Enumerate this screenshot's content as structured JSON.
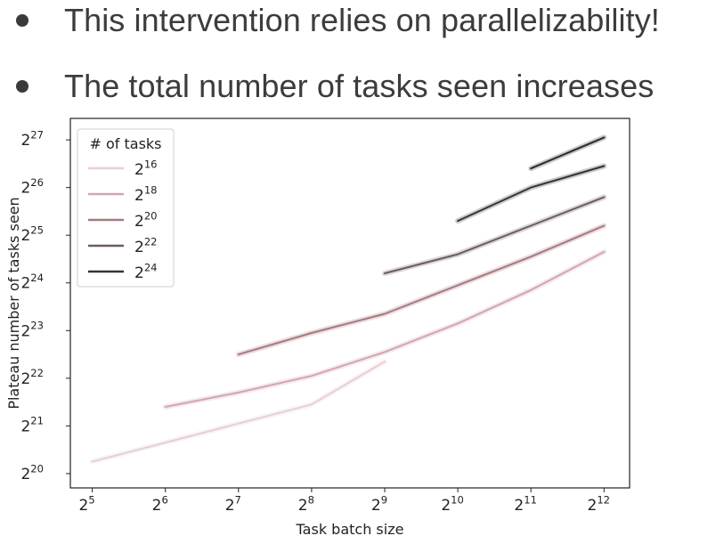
{
  "slide": {
    "bullets": [
      "This intervention relies on parallelizability!",
      "The total number of tasks seen increases"
    ]
  },
  "chart_data": {
    "type": "line",
    "title": "",
    "xlabel": "Task batch size",
    "ylabel": "Plateau number of tasks seen",
    "x_scale": "log2",
    "y_scale": "log2",
    "x_ticks": [
      {
        "exp": 5
      },
      {
        "exp": 6
      },
      {
        "exp": 7
      },
      {
        "exp": 8
      },
      {
        "exp": 9
      },
      {
        "exp": 10
      },
      {
        "exp": 11
      },
      {
        "exp": 12
      }
    ],
    "y_ticks": [
      {
        "exp": 20
      },
      {
        "exp": 21
      },
      {
        "exp": 22
      },
      {
        "exp": 23
      },
      {
        "exp": 24
      },
      {
        "exp": 25
      },
      {
        "exp": 26
      },
      {
        "exp": 27
      }
    ],
    "tick_base": "2",
    "xlim_log2": [
      4.7,
      12.35
    ],
    "ylim_log2": [
      19.7,
      27.45
    ],
    "legend": {
      "title": "# of tasks",
      "placement": "top-left"
    },
    "series": [
      {
        "name_base": "2",
        "name_exp": "16",
        "color": "#e8cfd4",
        "points": [
          {
            "x_log2": 5,
            "y_log2": 20.25
          },
          {
            "x_log2": 6,
            "y_log2": 20.65
          },
          {
            "x_log2": 7,
            "y_log2": 21.05
          },
          {
            "x_log2": 8,
            "y_log2": 21.45
          },
          {
            "x_log2": 9,
            "y_log2": 22.35
          }
        ]
      },
      {
        "name_base": "2",
        "name_exp": "18",
        "color": "#d2a6ae",
        "points": [
          {
            "x_log2": 6,
            "y_log2": 21.4
          },
          {
            "x_log2": 7,
            "y_log2": 21.7
          },
          {
            "x_log2": 8,
            "y_log2": 22.05
          },
          {
            "x_log2": 9,
            "y_log2": 22.55
          },
          {
            "x_log2": 10,
            "y_log2": 23.15
          },
          {
            "x_log2": 11,
            "y_log2": 23.85
          },
          {
            "x_log2": 12,
            "y_log2": 24.65
          }
        ]
      },
      {
        "name_base": "2",
        "name_exp": "20",
        "color": "#a9787f",
        "points": [
          {
            "x_log2": 7,
            "y_log2": 22.5
          },
          {
            "x_log2": 8,
            "y_log2": 22.95
          },
          {
            "x_log2": 9,
            "y_log2": 23.35
          },
          {
            "x_log2": 10,
            "y_log2": 23.95
          },
          {
            "x_log2": 11,
            "y_log2": 24.55
          },
          {
            "x_log2": 12,
            "y_log2": 25.2
          }
        ]
      },
      {
        "name_base": "2",
        "name_exp": "22",
        "color": "#6d5a66",
        "points": [
          {
            "x_log2": 9,
            "y_log2": 24.2
          },
          {
            "x_log2": 10,
            "y_log2": 24.6
          },
          {
            "x_log2": 11,
            "y_log2": 25.2
          },
          {
            "x_log2": 12,
            "y_log2": 25.8
          }
        ]
      },
      {
        "name_base": "2",
        "name_exp": "24",
        "color": "#333338",
        "points": [
          {
            "x_log2": 10,
            "y_log2": 25.3
          },
          {
            "x_log2": 11,
            "y_log2": 26.0
          },
          {
            "x_log2": 12,
            "y_log2": 26.45
          }
        ]
      },
      {
        "name_base": "",
        "name_exp": "",
        "color": "#2a2a2e",
        "points": [
          {
            "x_log2": 11,
            "y_log2": 26.4
          },
          {
            "x_log2": 12,
            "y_log2": 27.05
          }
        ]
      }
    ]
  }
}
